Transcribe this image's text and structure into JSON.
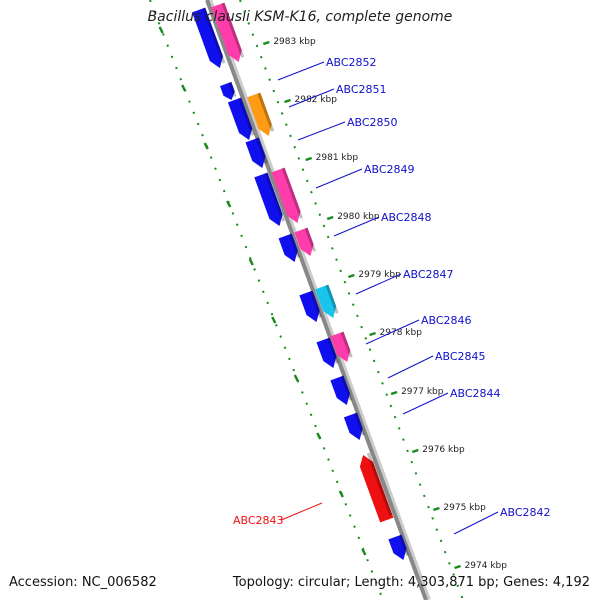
{
  "title": "Bacillus clausii KSM-K16, complete genome",
  "footer": {
    "accession": "Accession: NC_006582",
    "summary": "Topology: circular; Length: 4,303,871 bp; Genes: 4,192"
  },
  "colors": {
    "forward": "#1010ee",
    "reverse_pink": "#ff3daa",
    "orange": "#ff9a14",
    "cyan": "#18c4ee",
    "highlight": "#ee1010",
    "axis": "#999999",
    "ticks": "#1a8a1a",
    "label": "#1010cc"
  },
  "ticks": [
    {
      "label": "2983 kbp"
    },
    {
      "label": "2982 kbp"
    },
    {
      "label": "2981 kbp"
    },
    {
      "label": "2980 kbp"
    },
    {
      "label": "2979 kbp"
    },
    {
      "label": "2978 kbp"
    },
    {
      "label": "2977 kbp"
    },
    {
      "label": "2976 kbp"
    },
    {
      "label": "2975 kbp"
    },
    {
      "label": "2974 kbp"
    }
  ],
  "genes": [
    {
      "name": "ABC2852",
      "color": "blue"
    },
    {
      "name": "ABC2851",
      "color": "blue"
    },
    {
      "name": "ABC2850",
      "color": "blue"
    },
    {
      "name": "ABC2849",
      "color": "blue"
    },
    {
      "name": "ABC2848",
      "color": "blue"
    },
    {
      "name": "ABC2847",
      "color": "blue"
    },
    {
      "name": "ABC2846",
      "color": "blue"
    },
    {
      "name": "ABC2845",
      "color": "blue"
    },
    {
      "name": "ABC2844",
      "color": "blue"
    },
    {
      "name": "ABC2843",
      "color": "red"
    },
    {
      "name": "ABC2842",
      "color": "blue"
    }
  ]
}
